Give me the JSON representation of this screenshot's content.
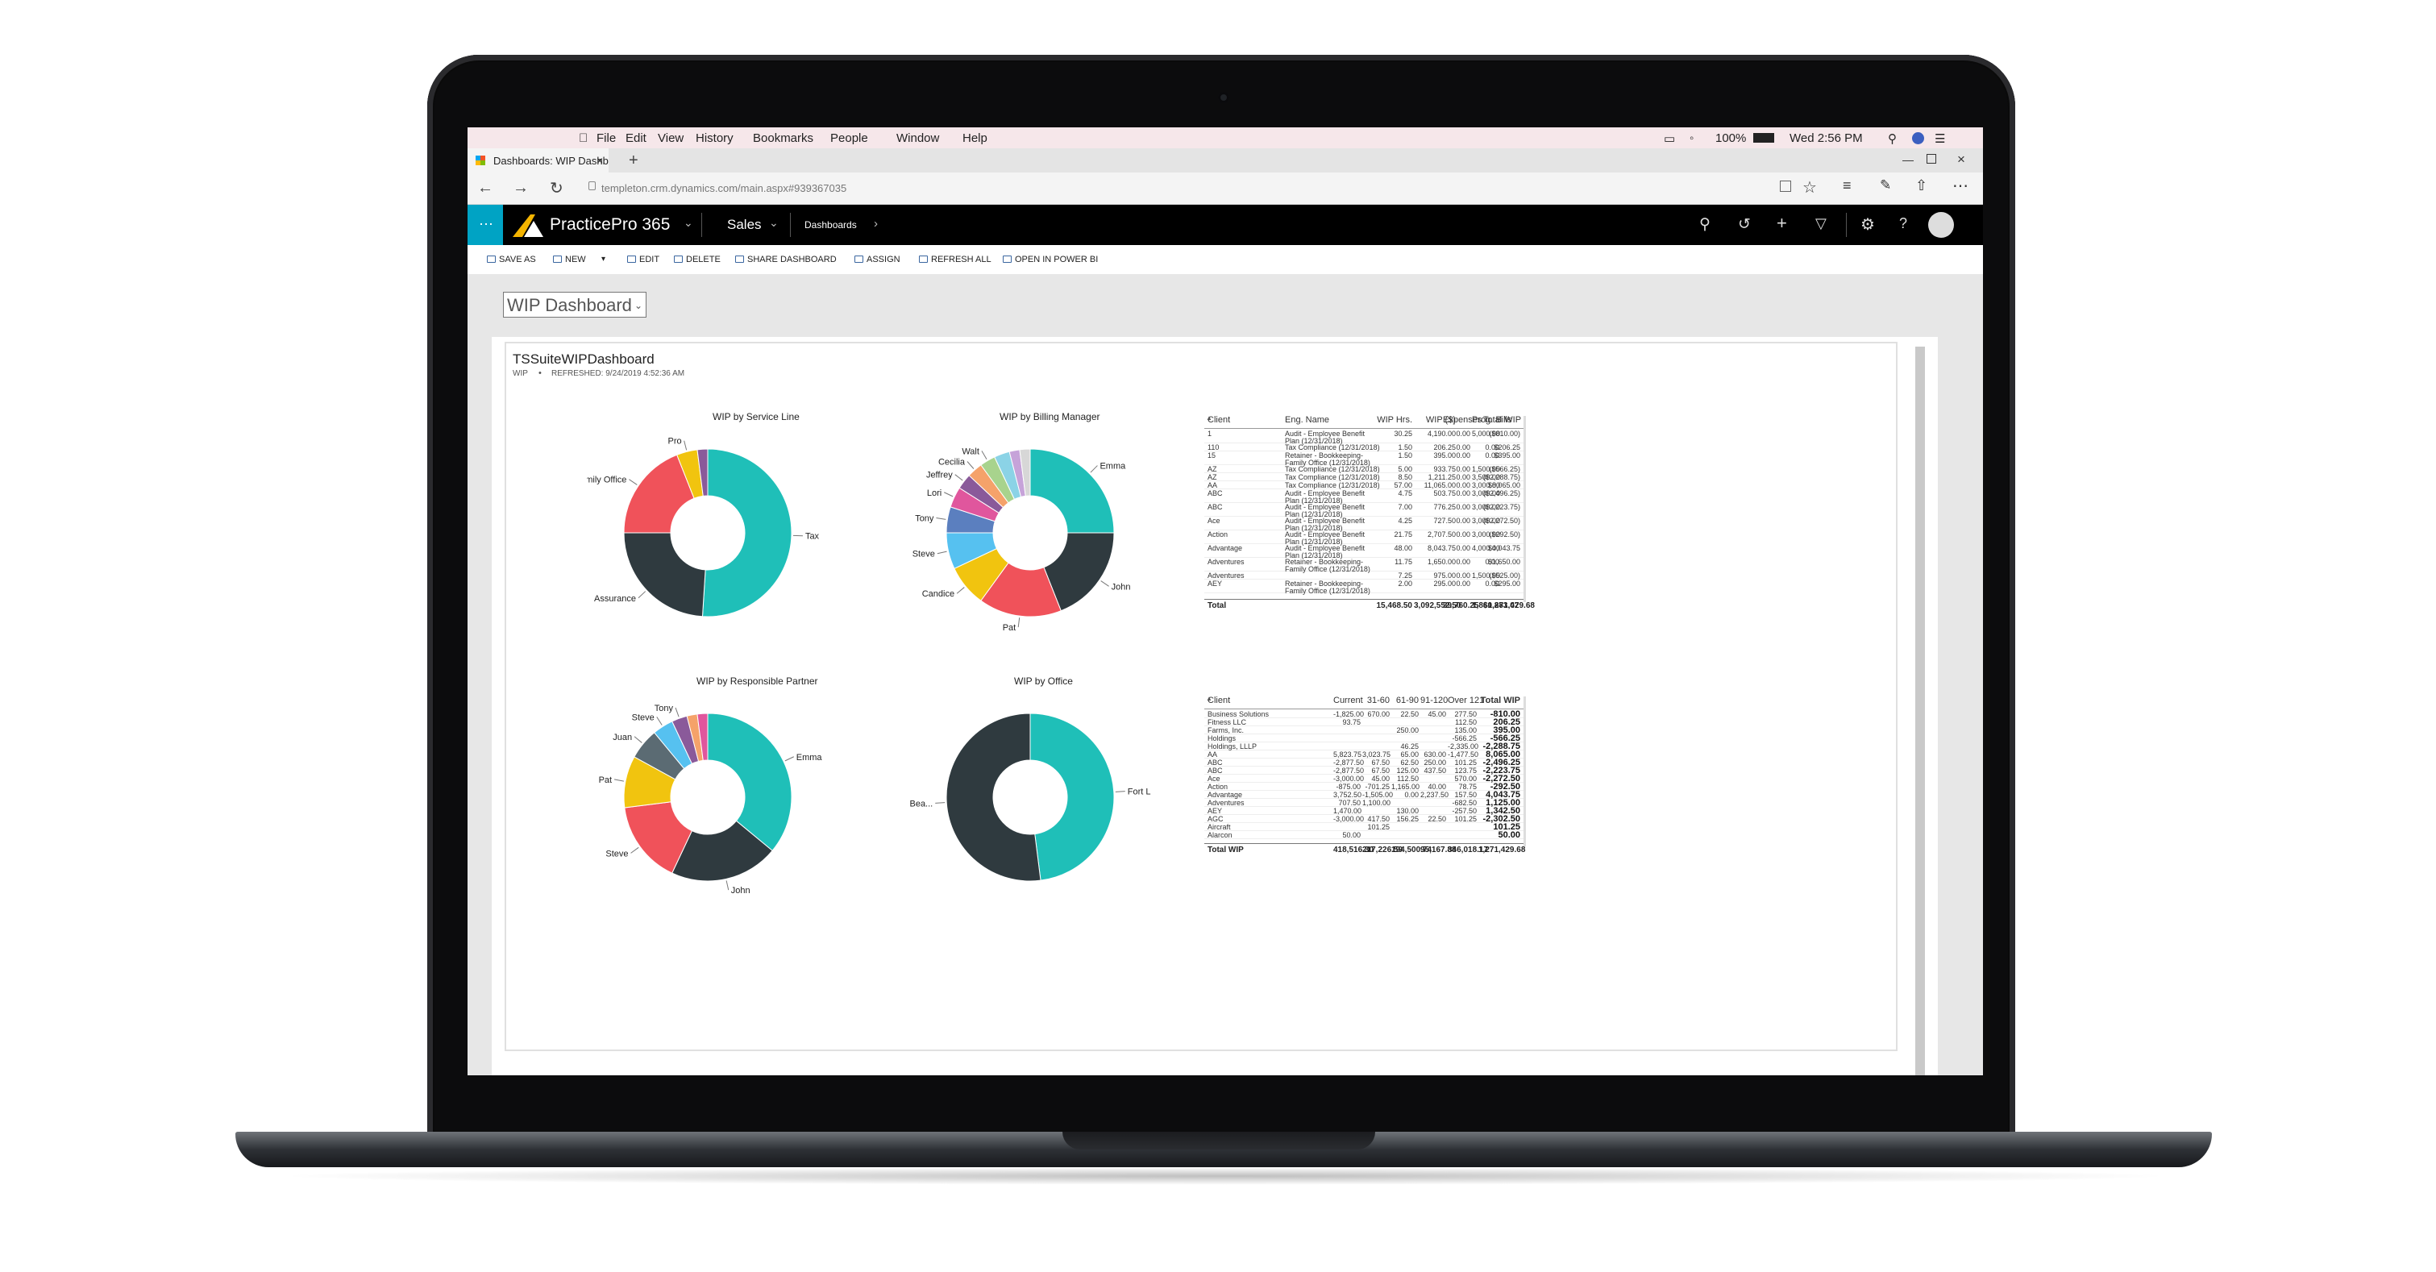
{
  "mac_menu": {
    "items": [
      "File",
      "Edit",
      "View",
      "History",
      "Bookmarks",
      "People",
      "Window",
      "Help"
    ],
    "battery": "100%",
    "clock": "Wed 2:56 PM"
  },
  "browser": {
    "tab_title": "Dashboards: WIP Dashb",
    "url": "templeton.crm.dynamics.com/main.aspx#939367035",
    "new_tab": "+"
  },
  "app": {
    "name": "PracticePro 365",
    "area": "Sales",
    "breadcrumb": "Dashboards"
  },
  "commands": [
    "SAVE AS",
    "NEW",
    "EDIT",
    "DELETE",
    "SHARE DASHBOARD",
    "ASSIGN",
    "REFRESH ALL",
    "OPEN IN POWER BI"
  ],
  "dashboard": {
    "selector": "WIP Dashboard",
    "title": "TSSuiteWIPDashboard",
    "subtitle": "WIP",
    "refreshed": "REFRESHED: 9/24/2019 4:52:36 AM"
  },
  "colors": {
    "teal": "#1fbfb8",
    "dark": "#2f3a3f",
    "red": "#f0525a",
    "yellow": "#f1c40f",
    "brand": "#00a3c4"
  },
  "charts": [
    {
      "title": "WIP by Service Line",
      "slices": [
        {
          "label": "Tax",
          "value": 51
        },
        {
          "label": "Assurance",
          "value": 24
        },
        {
          "label": "Family Office",
          "value": 19
        },
        {
          "label": "Pro",
          "value": 4
        },
        {
          "label": "",
          "value": 2
        }
      ]
    },
    {
      "title": "WIP by Billing Manager",
      "slices": [
        {
          "label": "Emma",
          "value": 25
        },
        {
          "label": "John",
          "value": 19
        },
        {
          "label": "Pat",
          "value": 16
        },
        {
          "label": "Candice",
          "value": 8
        },
        {
          "label": "Steve",
          "value": 7
        },
        {
          "label": "Tony",
          "value": 5
        },
        {
          "label": "Lori",
          "value": 4
        },
        {
          "label": "Jeffrey",
          "value": 3
        },
        {
          "label": "Cecilia",
          "value": 3
        },
        {
          "label": "Walt",
          "value": 3
        },
        {
          "label": "",
          "value": 3
        },
        {
          "label": "",
          "value": 2
        },
        {
          "label": "",
          "value": 2
        }
      ]
    },
    {
      "title": "WIP by Responsible Partner",
      "slices": [
        {
          "label": "Emma",
          "value": 36
        },
        {
          "label": "John",
          "value": 21
        },
        {
          "label": "Steve",
          "value": 16
        },
        {
          "label": "Pat",
          "value": 10
        },
        {
          "label": "Juan",
          "value": 6
        },
        {
          "label": "Steve",
          "value": 4
        },
        {
          "label": "Tony",
          "value": 3
        },
        {
          "label": "",
          "value": 2
        },
        {
          "label": "",
          "value": 2
        }
      ]
    },
    {
      "title": "WIP by Office",
      "slices": [
        {
          "label": "Fort Lauderdale",
          "value": 48
        },
        {
          "label": "West Palm Bea...",
          "value": 52
        }
      ]
    }
  ],
  "table1": {
    "headers": [
      "Client",
      "Eng. Name",
      "WIP Hrs.",
      "WIP ($)",
      "Expenses",
      "Prog. Bills",
      "Total WIP"
    ],
    "rows": [
      [
        "1",
        "Audit - Employee Benefit Plan (12/31/2018)",
        "30.25",
        "4,190.00",
        "0.00",
        "5,000.00",
        "($810.00)"
      ],
      [
        "110",
        "Tax Compliance (12/31/2018)",
        "1.50",
        "206.25",
        "0.00",
        "0.00",
        "$206.25"
      ],
      [
        "15",
        "Retainer - Bookkeeping-Family Office (12/31/2018)",
        "1.50",
        "395.00",
        "0.00",
        "0.00",
        "$395.00"
      ],
      [
        "AZ",
        "Tax Compliance (12/31/2018)",
        "5.00",
        "933.75",
        "0.00",
        "1,500.00",
        "($566.25)"
      ],
      [
        "AZ",
        "Tax Compliance (12/31/2018)",
        "8.50",
        "1,211.25",
        "0.00",
        "3,500.00",
        "($2,288.75)"
      ],
      [
        "AA",
        "Tax Compliance (12/31/2018)",
        "57.00",
        "11,065.00",
        "0.00",
        "3,000.00",
        "$8,065.00"
      ],
      [
        "ABC",
        "Audit - Employee Benefit Plan (12/31/2018)",
        "4.75",
        "503.75",
        "0.00",
        "3,000.00",
        "($2,496.25)"
      ],
      [
        "ABC",
        "Audit - Employee Benefit Plan (12/31/2018)",
        "7.00",
        "776.25",
        "0.00",
        "3,000.00",
        "($2,223.75)"
      ],
      [
        "Ace",
        "Audit - Employee Benefit Plan (12/31/2018)",
        "4.25",
        "727.50",
        "0.00",
        "3,000.00",
        "($2,272.50)"
      ],
      [
        "Action",
        "Audit - Employee Benefit Plan (12/31/2018)",
        "21.75",
        "2,707.50",
        "0.00",
        "3,000.00",
        "($292.50)"
      ],
      [
        "Advantage",
        "Audit - Employee Benefit Plan (12/31/2018)",
        "48.00",
        "8,043.75",
        "0.00",
        "4,000.00",
        "$4,043.75"
      ],
      [
        "Adventures",
        "Retainer - Bookkeeping-Family Office (12/31/2018)",
        "11.75",
        "1,650.00",
        "0.00",
        "0.00",
        "$1,650.00"
      ],
      [
        "Adventures",
        "",
        "7.25",
        "975.00",
        "0.00",
        "1,500.00",
        "($525.00)"
      ],
      [
        "AEY",
        "Retainer - Bookkeeping-Family Office (12/31/2018)",
        "2.00",
        "295.00",
        "0.00",
        "0.00",
        "$295.00"
      ]
    ],
    "total": [
      "Total",
      "",
      "15,468.50",
      "3,092,552.50",
      "39,760.25",
      "1,860,883.07",
      "$1,271,429.68"
    ]
  },
  "table2": {
    "headers": [
      "Client",
      "Current",
      "31-60",
      "61-90",
      "91-120",
      "Over 121",
      "Total WIP"
    ],
    "rows": [
      [
        "Business Solutions",
        "-1,825.00",
        "670.00",
        "22.50",
        "45.00",
        "277.50",
        "-810.00"
      ],
      [
        "Fitness LLC",
        "93.75",
        "",
        "",
        "",
        "112.50",
        "206.25"
      ],
      [
        "Farms, Inc.",
        "",
        "",
        "250.00",
        "",
        "135.00",
        "395.00"
      ],
      [
        "Holdings",
        "",
        "",
        "",
        "",
        "-566.25",
        "-566.25"
      ],
      [
        "Holdings, LLLP",
        "",
        "",
        "46.25",
        "",
        "-2,335.00",
        "-2,288.75"
      ],
      [
        "AA",
        "5,823.75",
        "3,023.75",
        "65.00",
        "630.00",
        "-1,477.50",
        "8,065.00"
      ],
      [
        "ABC",
        "-2,877.50",
        "67.50",
        "62.50",
        "250.00",
        "101.25",
        "-2,496.25"
      ],
      [
        "ABC",
        "-2,877.50",
        "67.50",
        "125.00",
        "437.50",
        "123.75",
        "-2,223.75"
      ],
      [
        "Ace",
        "-3,000.00",
        "45.00",
        "112.50",
        "",
        "570.00",
        "-2,272.50"
      ],
      [
        "Action",
        "-875.00",
        "-701.25",
        "1,165.00",
        "40.00",
        "78.75",
        "-292.50"
      ],
      [
        "Advantage",
        "3,752.50",
        "-1,505.00",
        "0.00",
        "2,237.50",
        "157.50",
        "4,043.75"
      ],
      [
        "Adventures",
        "707.50",
        "1,100.00",
        "",
        "",
        "-682.50",
        "1,125.00"
      ],
      [
        "AEY",
        "1,470.00",
        "",
        "130.00",
        "",
        "-257.50",
        "1,342.50"
      ],
      [
        "AGC",
        "-3,000.00",
        "417.50",
        "156.25",
        "22.50",
        "101.25",
        "-2,302.50"
      ],
      [
        "Aircraft",
        "",
        "101.25",
        "",
        "",
        "",
        "101.25"
      ],
      [
        "Alarcon",
        "50.00",
        "",
        "",
        "",
        "",
        "50.00"
      ]
    ],
    "total": [
      "Total WIP",
      "418,516.30",
      "217,226.59",
      "194,500.74",
      "95,167.88",
      "346,018.17",
      "1,271,429.68"
    ]
  }
}
